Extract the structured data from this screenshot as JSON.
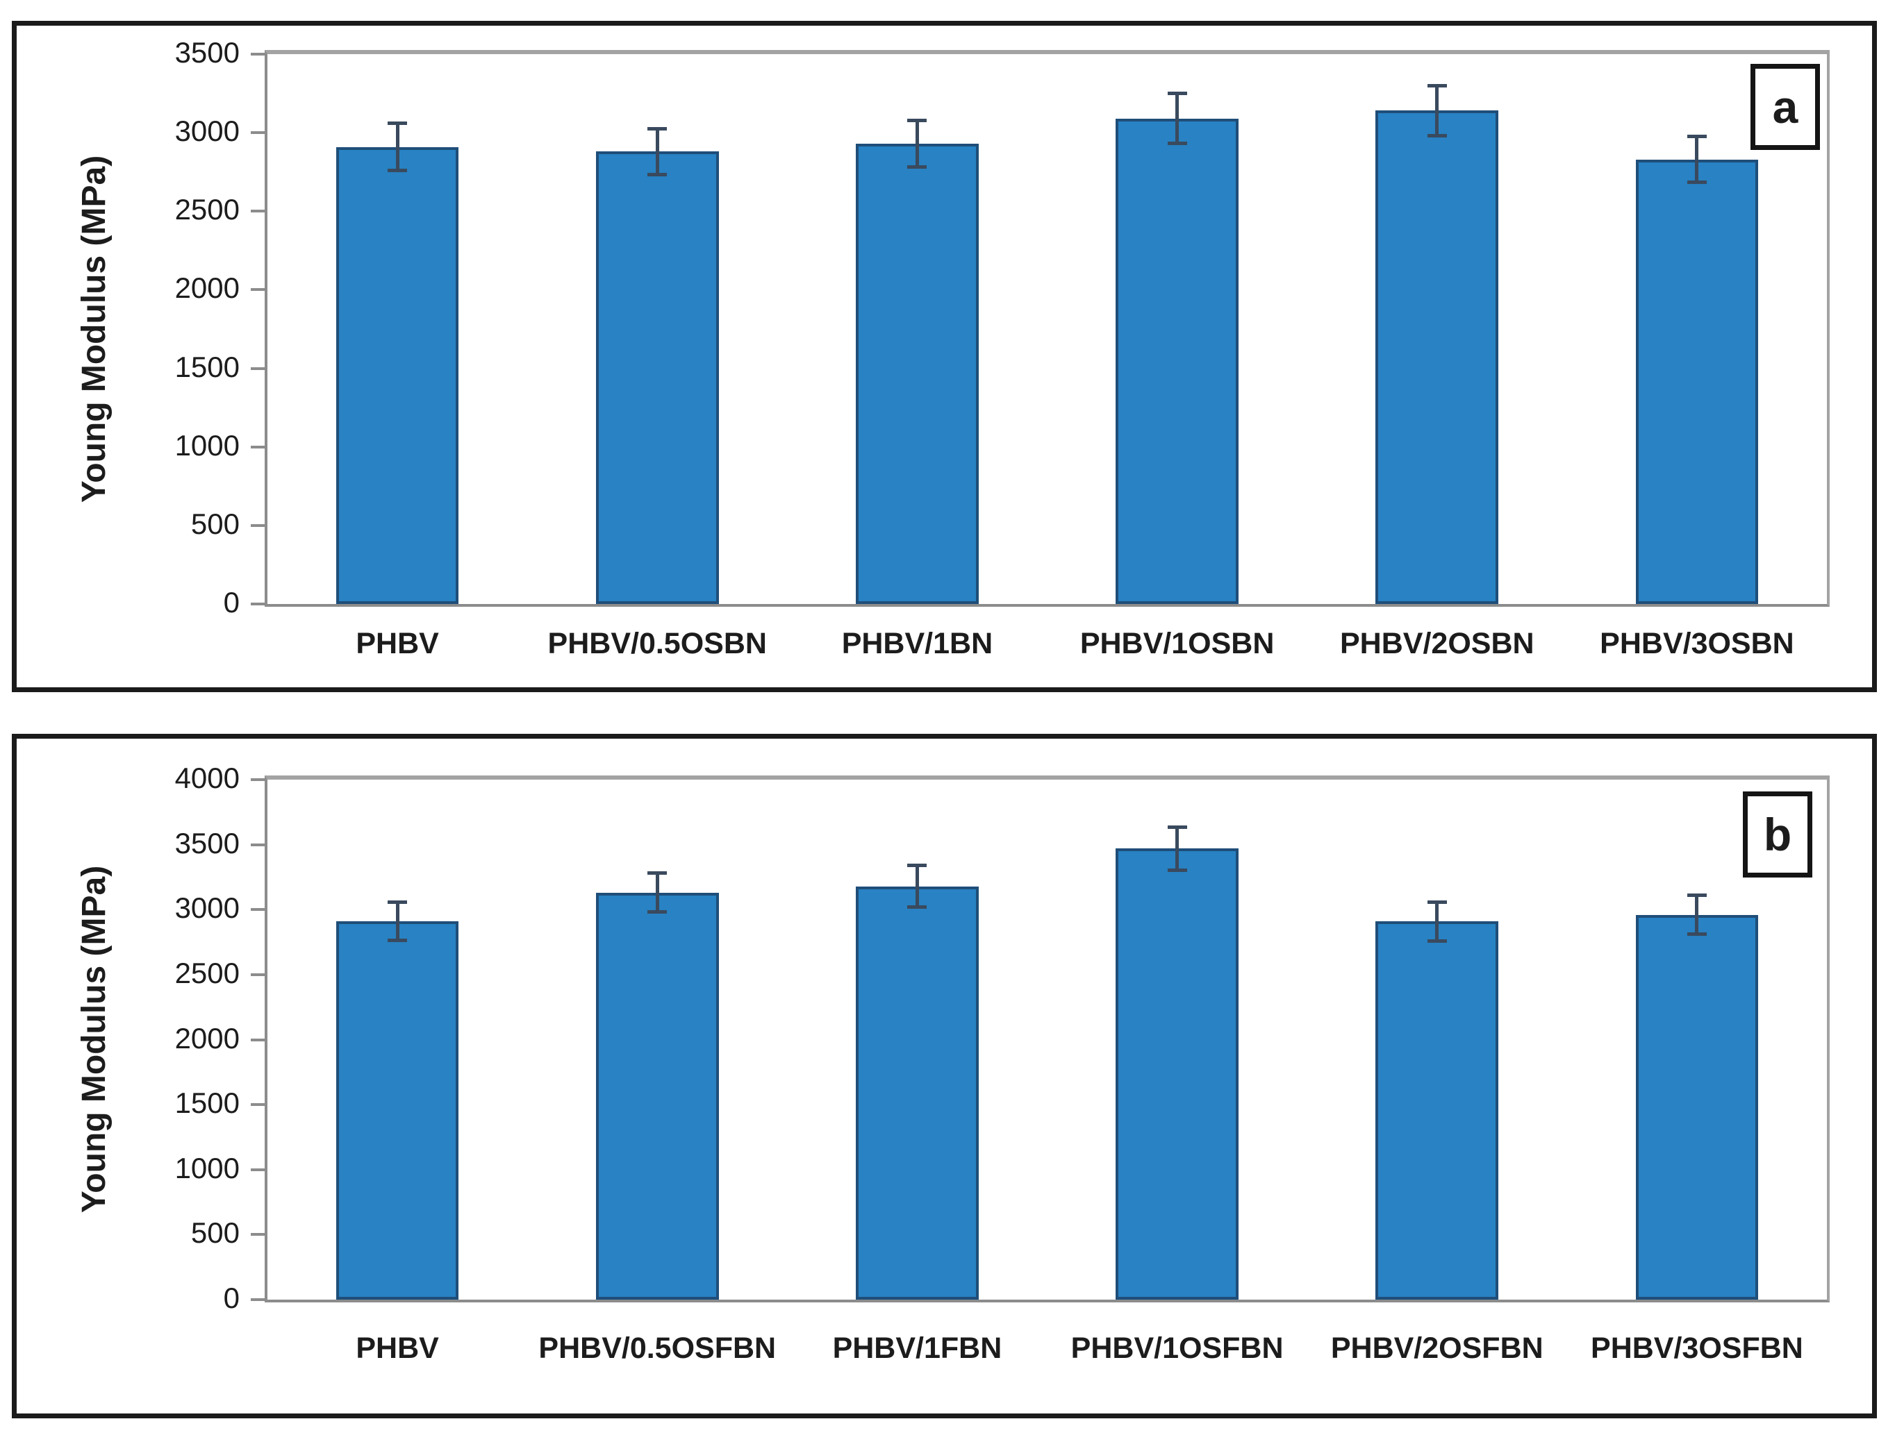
{
  "figure": {
    "background": "#ffffff",
    "bar_fill": "#2882C3",
    "bar_border": "#1F4E79",
    "error_bar_color": "#3A4A5E",
    "axis_line_color": "#8C8C8C",
    "frame_color": "#1B1B1B",
    "text_color": "#1C1C1C"
  },
  "chart_data": [
    {
      "type": "bar",
      "panel_label": "a",
      "title": "",
      "xlabel": "",
      "ylabel": "Young Modulus (MPa)",
      "ylim": [
        0,
        3500
      ],
      "yticks": [
        3500,
        3000,
        2500,
        2000,
        1500,
        1000,
        500,
        0
      ],
      "grid": false,
      "legend": "none",
      "categories": [
        "PHBV",
        "PHBV/0.5OSBN",
        "PHBV/1BN",
        "PHBV/1OSBN",
        "PHBV/2OSBN",
        "PHBV/3OSBN"
      ],
      "values": [
        2910,
        2880,
        2930,
        3090,
        3140,
        2830
      ],
      "errors": [
        150,
        145,
        150,
        160,
        160,
        145
      ]
    },
    {
      "type": "bar",
      "panel_label": "b",
      "title": "",
      "xlabel": "",
      "ylabel": "Young Modulus (MPa)",
      "ylim": [
        0,
        4000
      ],
      "yticks": [
        4000,
        3500,
        3000,
        2500,
        2000,
        1500,
        1000,
        500,
        0
      ],
      "grid": false,
      "legend": "none",
      "categories": [
        "PHBV",
        "PHBV/0.5OSFBN",
        "PHBV/1FBN",
        "PHBV/1OSFBN",
        "PHBV/2OSFBN",
        "PHBV/3OSFBN"
      ],
      "values": [
        2910,
        3130,
        3180,
        3470,
        2910,
        2960
      ],
      "errors": [
        145,
        150,
        160,
        165,
        150,
        150
      ]
    }
  ]
}
